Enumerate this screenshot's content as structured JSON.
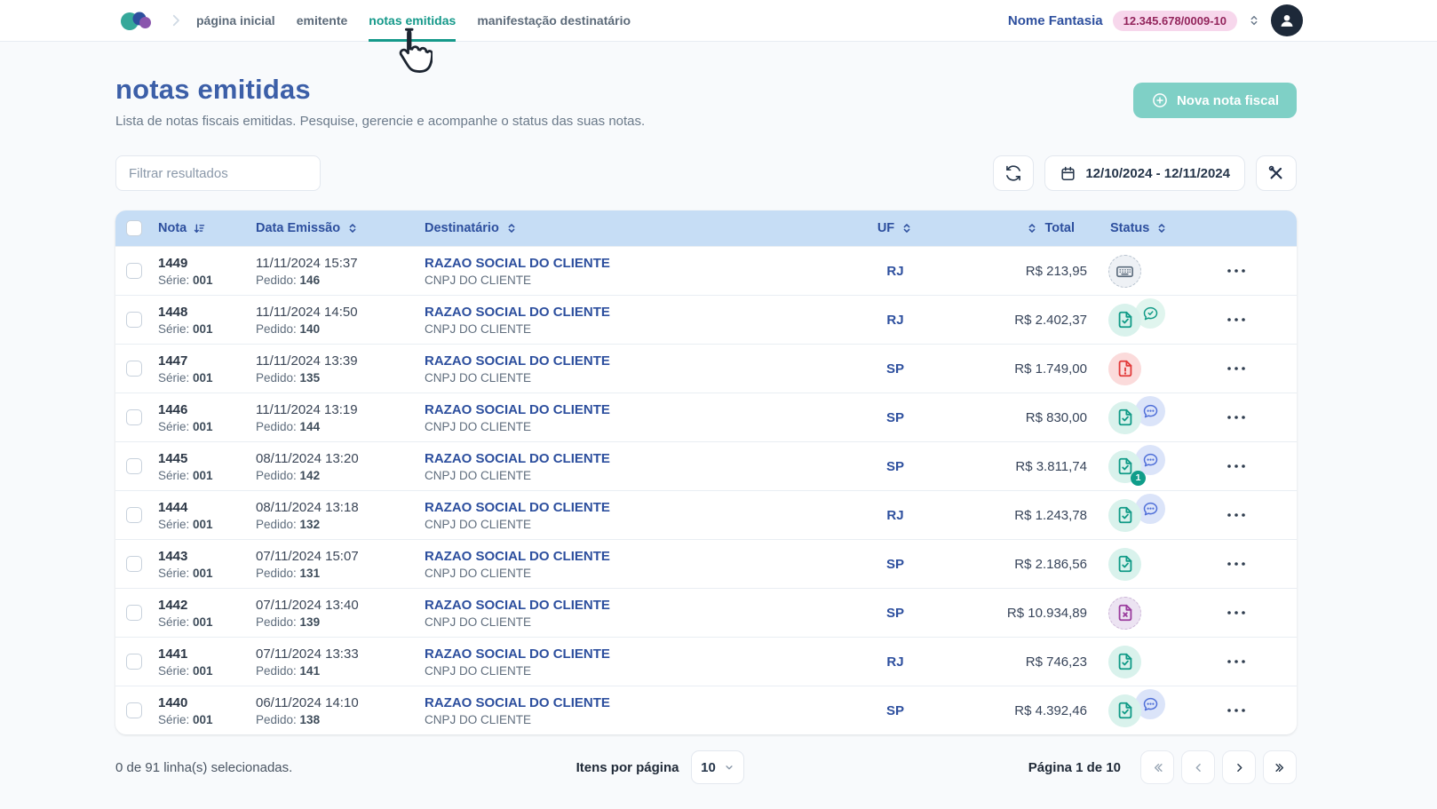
{
  "nav": {
    "items": [
      {
        "label": "página inicial",
        "active": false
      },
      {
        "label": "emitente",
        "active": false
      },
      {
        "label": "notas emitidas",
        "active": true
      },
      {
        "label": "manifestação destinatário",
        "active": false
      }
    ],
    "company_name": "Nome Fantasia",
    "cnpj_badge": "12.345.678/0009-10"
  },
  "header": {
    "title": "notas emitidas",
    "subtitle": "Lista de notas fiscais emitidas. Pesquise, gerencie e acompanhe o status das suas notas.",
    "new_invoice_button": "Nova nota fiscal"
  },
  "toolbar": {
    "filter_placeholder": "Filtrar resultados",
    "date_range": "12/10/2024 - 12/11/2024"
  },
  "table": {
    "columns": {
      "nota": {
        "label": "Nota",
        "sort": "sorted-desc"
      },
      "data_emissao": {
        "label": "Data Emissão",
        "sort": "sortable"
      },
      "destinatario": {
        "label": "Destinatário",
        "sort": "sortable"
      },
      "uf": {
        "label": "UF",
        "sort": "sortable"
      },
      "total": {
        "label": "Total",
        "sort": "sortable"
      },
      "status": {
        "label": "Status",
        "sort": "sortable"
      }
    },
    "row_labels": {
      "serie": "Série:",
      "pedido": "Pedido:"
    },
    "rows": [
      {
        "nota": "1449",
        "serie": "001",
        "date": "11/11/2024 15:37",
        "pedido": "146",
        "dest_name": "RAZAO SOCIAL DO CLIENTE",
        "dest_doc": "CNPJ DO CLIENTE",
        "uf": "RJ",
        "total": "R$ 213,95",
        "status": {
          "main": "keyboard",
          "badge": null,
          "chat": null
        }
      },
      {
        "nota": "1448",
        "serie": "001",
        "date": "11/11/2024 14:50",
        "pedido": "140",
        "dest_name": "RAZAO SOCIAL DO CLIENTE",
        "dest_doc": "CNPJ DO CLIENTE",
        "uf": "RJ",
        "total": "R$ 2.402,37",
        "status": {
          "main": "doc-check",
          "badge": null,
          "chat": "check"
        }
      },
      {
        "nota": "1447",
        "serie": "001",
        "date": "11/11/2024 13:39",
        "pedido": "135",
        "dest_name": "RAZAO SOCIAL DO CLIENTE",
        "dest_doc": "CNPJ DO CLIENTE",
        "uf": "SP",
        "total": "R$ 1.749,00",
        "status": {
          "main": "doc-alert",
          "badge": null,
          "chat": null
        }
      },
      {
        "nota": "1446",
        "serie": "001",
        "date": "11/11/2024 13:19",
        "pedido": "144",
        "dest_name": "RAZAO SOCIAL DO CLIENTE",
        "dest_doc": "CNPJ DO CLIENTE",
        "uf": "SP",
        "total": "R$ 830,00",
        "status": {
          "main": "doc-check",
          "badge": null,
          "chat": "dots"
        }
      },
      {
        "nota": "1445",
        "serie": "001",
        "date": "08/11/2024 13:20",
        "pedido": "142",
        "dest_name": "RAZAO SOCIAL DO CLIENTE",
        "dest_doc": "CNPJ DO CLIENTE",
        "uf": "SP",
        "total": "R$ 3.811,74",
        "status": {
          "main": "doc-check",
          "badge": "1",
          "chat": "dots"
        }
      },
      {
        "nota": "1444",
        "serie": "001",
        "date": "08/11/2024 13:18",
        "pedido": "132",
        "dest_name": "RAZAO SOCIAL DO CLIENTE",
        "dest_doc": "CNPJ DO CLIENTE",
        "uf": "RJ",
        "total": "R$ 1.243,78",
        "status": {
          "main": "doc-check",
          "badge": null,
          "chat": "dots"
        }
      },
      {
        "nota": "1443",
        "serie": "001",
        "date": "07/11/2024 15:07",
        "pedido": "131",
        "dest_name": "RAZAO SOCIAL DO CLIENTE",
        "dest_doc": "CNPJ DO CLIENTE",
        "uf": "SP",
        "total": "R$ 2.186,56",
        "status": {
          "main": "doc-check",
          "badge": null,
          "chat": null
        }
      },
      {
        "nota": "1442",
        "serie": "001",
        "date": "07/11/2024 13:40",
        "pedido": "139",
        "dest_name": "RAZAO SOCIAL DO CLIENTE",
        "dest_doc": "CNPJ DO CLIENTE",
        "uf": "SP",
        "total": "R$ 10.934,89",
        "status": {
          "main": "doc-cancel",
          "badge": null,
          "chat": null
        }
      },
      {
        "nota": "1441",
        "serie": "001",
        "date": "07/11/2024 13:33",
        "pedido": "141",
        "dest_name": "RAZAO SOCIAL DO CLIENTE",
        "dest_doc": "CNPJ DO CLIENTE",
        "uf": "RJ",
        "total": "R$ 746,23",
        "status": {
          "main": "doc-check",
          "badge": null,
          "chat": null
        }
      },
      {
        "nota": "1440",
        "serie": "001",
        "date": "06/11/2024 14:10",
        "pedido": "138",
        "dest_name": "RAZAO SOCIAL DO CLIENTE",
        "dest_doc": "CNPJ DO CLIENTE",
        "uf": "SP",
        "total": "R$ 4.392,46",
        "status": {
          "main": "doc-check",
          "badge": null,
          "chat": "dots"
        }
      }
    ]
  },
  "footer": {
    "selection": "0 de 91 linha(s) selecionadas.",
    "items_per_page_label": "Itens por página",
    "items_per_page_value": "10",
    "page_info": "Página 1 de 10"
  },
  "icons": {
    "new_invoice": "plus-circle-icon",
    "refresh": "refresh-icon",
    "date_range": "calendar-icon",
    "settings": "tools-icon",
    "status_keyboard": "keyboard-icon",
    "status_authorized": "document-check-icon",
    "status_rejected": "document-alert-icon",
    "status_cancelled": "document-cancel-icon",
    "chat_check": "chat-check-icon",
    "chat_dots": "chat-dots-icon"
  },
  "colors": {
    "accent_teal": "#15998a",
    "brand_blue": "#2d4f9e",
    "title_blue": "#3c5fa8",
    "header_bg": "#c6ddf5",
    "status_green": "#0f9d8a",
    "status_red": "#e23b3b",
    "status_purple": "#9b3d9e",
    "chat_indigo": "#4f6fd8",
    "badge_pink_bg": "#f7d7ec",
    "new_button_bg": "#7fd0c6"
  }
}
